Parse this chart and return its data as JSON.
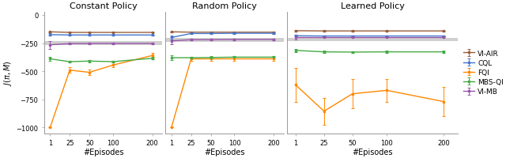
{
  "x_vals": [
    1,
    25,
    50,
    100,
    200
  ],
  "x_tick_labels": [
    "1",
    "25",
    "50",
    "100",
    "200"
  ],
  "ylim": [
    -1050,
    30
  ],
  "yticks": [
    0,
    -250,
    -500,
    -750,
    -1000
  ],
  "ylabel": "$J(\\pi, M)$",
  "xlabel": "#Episodes",
  "titles": [
    "Constant Policy",
    "Random Policy",
    "Learned Policy"
  ],
  "colors": {
    "VI-AIR": "#9B5E3A",
    "CQL": "#4477CC",
    "FQI": "#FF8800",
    "MBS-QI": "#44AA44",
    "VI-MB": "#9955AA"
  },
  "gray_band_color": "#BBBBBB",
  "panels": {
    "Constant Policy": {
      "VI-AIR": {
        "y": [
          -150,
          -155,
          -155,
          -155,
          -155
        ],
        "yerr": [
          5,
          3,
          3,
          3,
          3
        ]
      },
      "CQL": {
        "y": [
          -175,
          -178,
          -178,
          -178,
          -178
        ],
        "yerr": [
          10,
          4,
          4,
          4,
          4
        ]
      },
      "FQI": {
        "y": [
          -1000,
          -490,
          -510,
          -445,
          -360
        ],
        "yerr": [
          0,
          25,
          25,
          20,
          20
        ]
      },
      "MBS-QI": {
        "y": [
          -390,
          -415,
          -410,
          -415,
          -385
        ],
        "yerr": [
          20,
          10,
          10,
          10,
          10
        ]
      },
      "VI-MB": {
        "y": [
          -265,
          -255,
          -253,
          -253,
          -253
        ],
        "yerr": [
          35,
          5,
          5,
          5,
          5
        ]
      },
      "gray_band": [
        -230,
        -265
      ]
    },
    "Random Policy": {
      "VI-AIR": {
        "y": [
          -150,
          -153,
          -153,
          -153,
          -153
        ],
        "yerr": [
          5,
          3,
          3,
          3,
          3
        ]
      },
      "CQL": {
        "y": [
          -200,
          -165,
          -165,
          -163,
          -163
        ],
        "yerr": [
          20,
          4,
          4,
          4,
          4
        ]
      },
      "FQI": {
        "y": [
          -1000,
          -390,
          -390,
          -390,
          -390
        ],
        "yerr": [
          0,
          15,
          15,
          15,
          15
        ]
      },
      "MBS-QI": {
        "y": [
          -380,
          -380,
          -378,
          -375,
          -375
        ],
        "yerr": [
          20,
          10,
          10,
          10,
          10
        ]
      },
      "VI-MB": {
        "y": [
          -230,
          -220,
          -220,
          -218,
          -218
        ],
        "yerr": [
          30,
          5,
          5,
          5,
          5
        ]
      },
      "gray_band": [
        -205,
        -238
      ]
    },
    "Learned Policy": {
      "VI-AIR": {
        "y": [
          -140,
          -142,
          -142,
          -142,
          -142
        ],
        "yerr": [
          5,
          3,
          3,
          3,
          3
        ]
      },
      "CQL": {
        "y": [
          -185,
          -187,
          -187,
          -187,
          -187
        ],
        "yerr": [
          8,
          4,
          4,
          4,
          4
        ]
      },
      "FQI": {
        "y": [
          -620,
          -855,
          -700,
          -670,
          -770
        ],
        "yerr": [
          150,
          120,
          130,
          100,
          130
        ]
      },
      "MBS-QI": {
        "y": [
          -315,
          -328,
          -330,
          -328,
          -328
        ],
        "yerr": [
          15,
          10,
          10,
          10,
          10
        ]
      },
      "VI-MB": {
        "y": [
          -195,
          -195,
          -195,
          -195,
          -195
        ],
        "yerr": [
          20,
          5,
          5,
          5,
          5
        ]
      },
      "gray_band": [
        -202,
        -232
      ]
    }
  },
  "legend_order": [
    "VI-AIR",
    "CQL",
    "FQI",
    "MBS-QI",
    "VI-MB"
  ]
}
